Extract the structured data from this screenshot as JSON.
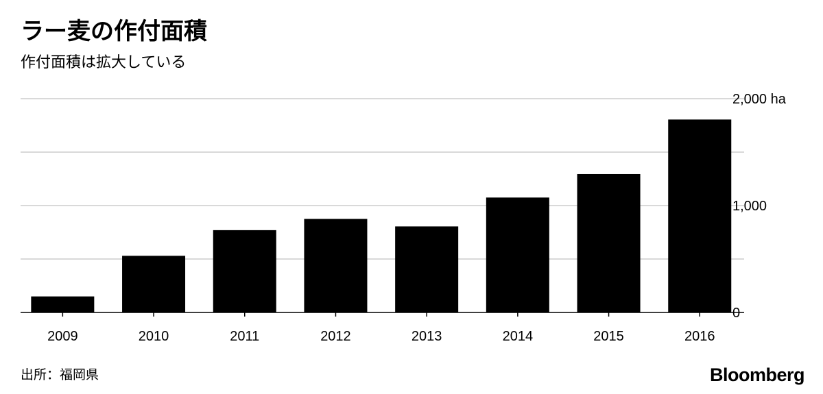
{
  "header": {
    "title": "ラー麦の作付面積",
    "subtitle": "作付面積は拡大している"
  },
  "footer": {
    "source": "出所：福岡県",
    "brand": "Bloomberg"
  },
  "colors": {
    "bar": "#000000",
    "grid": "#d9d9d9",
    "axis": "#000000"
  },
  "chart_data": {
    "type": "bar",
    "title": "ラー麦の作付面積",
    "subtitle": "作付面積は拡大している",
    "categories": [
      "2009",
      "2010",
      "2011",
      "2012",
      "2013",
      "2014",
      "2015",
      "2016"
    ],
    "values": [
      150,
      530,
      770,
      875,
      805,
      1075,
      1295,
      1805
    ],
    "ylim": [
      0,
      2000
    ],
    "yticks": [
      {
        "value": 0,
        "label": "0"
      },
      {
        "value": 500,
        "label": ""
      },
      {
        "value": 1000,
        "label": "1,000"
      },
      {
        "value": 1500,
        "label": ""
      },
      {
        "value": 2000,
        "label": "2,000 ha"
      }
    ],
    "grid": true,
    "yaxis_side": "right",
    "unit": "ha"
  }
}
